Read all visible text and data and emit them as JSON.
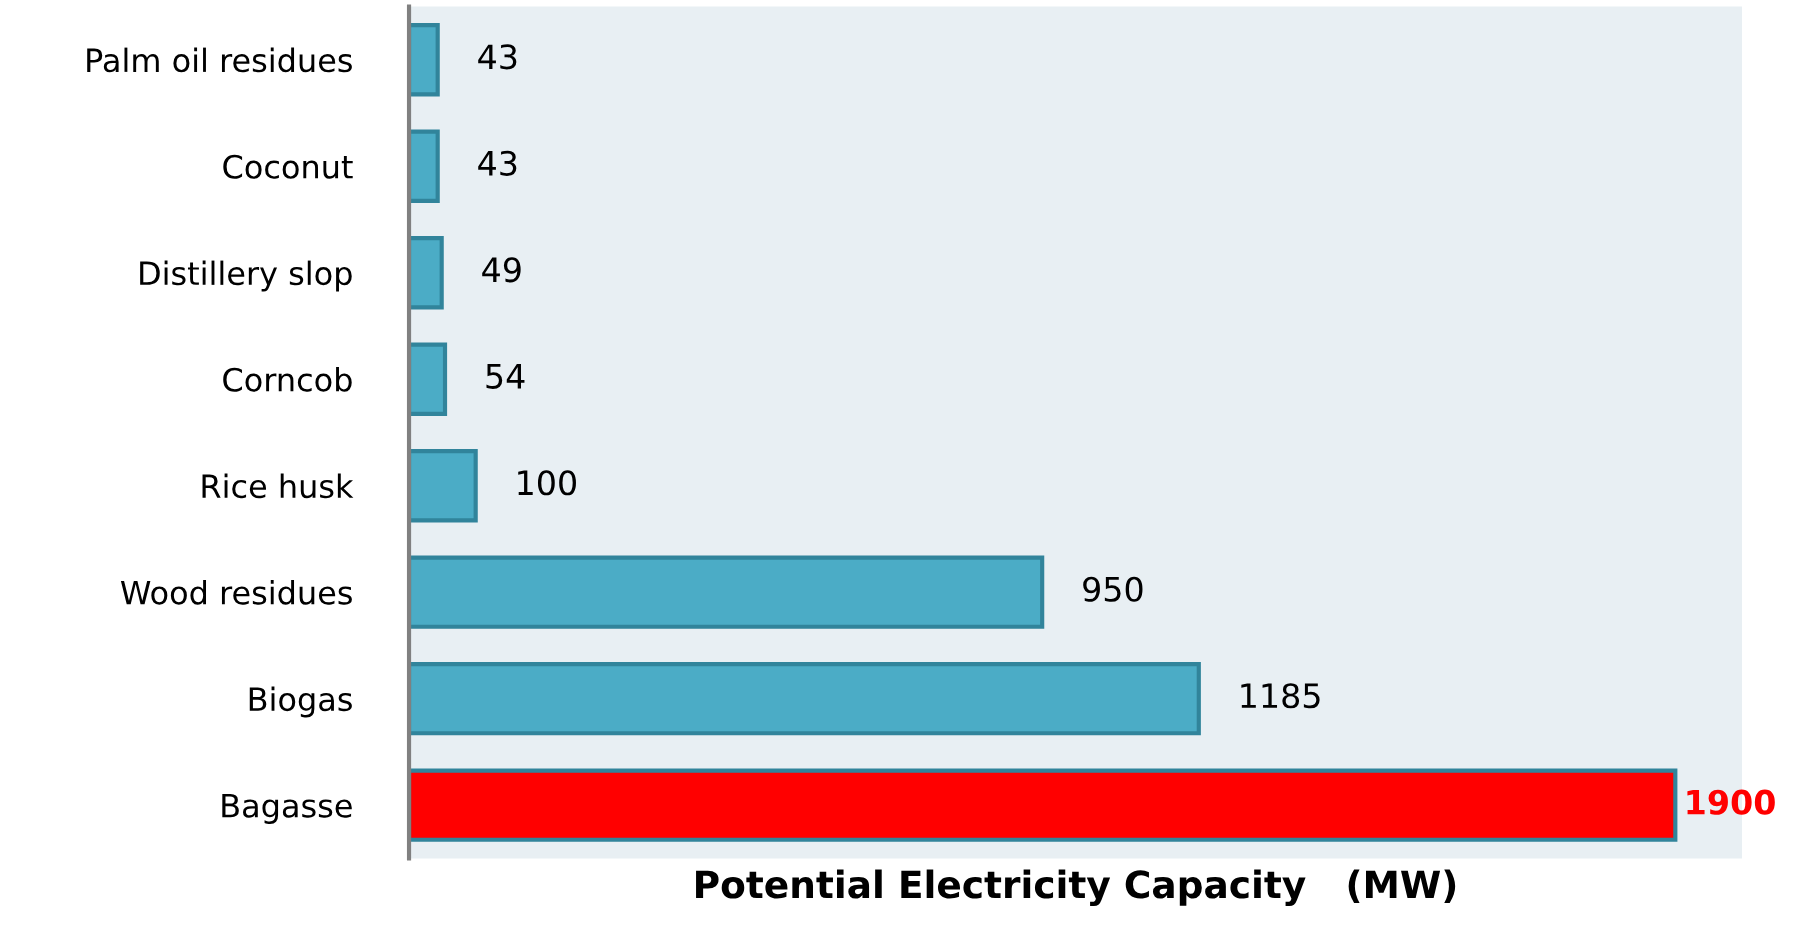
{
  "chart_data": {
    "type": "bar",
    "orientation": "horizontal",
    "xlabel": "Potential Electricity Capacity   (MW)",
    "categories": [
      "Palm oil residues",
      "Coconut",
      "Distillery slop",
      "Corncob",
      "Rice husk",
      "Wood residues",
      "Biogas",
      "Bagasse"
    ],
    "values": [
      43,
      43,
      49,
      54,
      100,
      950,
      1185,
      1900
    ],
    "colors": [
      "#4bacc6",
      "#4bacc6",
      "#4bacc6",
      "#4bacc6",
      "#4bacc6",
      "#4bacc6",
      "#4bacc6",
      "#ff0000"
    ],
    "xlim": [
      0,
      2000
    ],
    "data_labels": true,
    "grid": false,
    "legend": false,
    "tick_labels": "y"
  }
}
